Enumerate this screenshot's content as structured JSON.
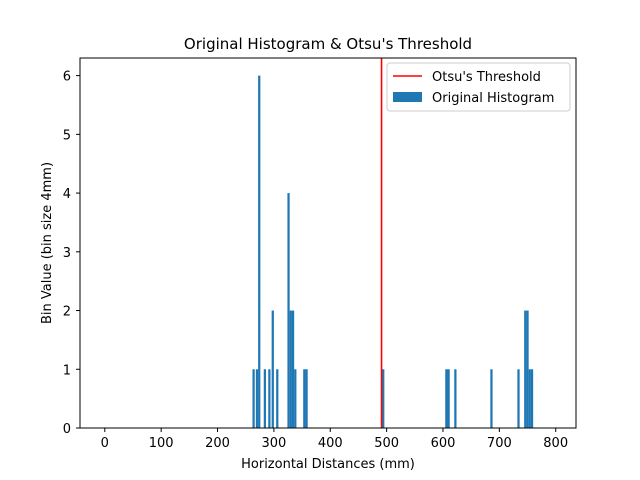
{
  "chart_data": {
    "type": "bar",
    "title": "Original Histogram & Otsu's Threshold",
    "xlabel": "Horizontal Distances (mm)",
    "ylabel": "Bin Value (bin size 4mm)",
    "xlim": [
      -44,
      836
    ],
    "ylim": [
      0,
      6.3
    ],
    "xticks": [
      0,
      100,
      200,
      300,
      400,
      500,
      600,
      700,
      800
    ],
    "yticks": [
      0,
      1,
      2,
      3,
      4,
      5,
      6
    ],
    "bin_size": 4,
    "series": [
      {
        "name": "Original Histogram",
        "color": "#1f77b4",
        "x": [
          264,
          270,
          274,
          284,
          292,
          298,
          306,
          326,
          330,
          334,
          338,
          354,
          358,
          494,
          606,
          610,
          622,
          686,
          734,
          746,
          750,
          754,
          758
        ],
        "values": [
          1,
          1,
          6,
          1,
          1,
          2,
          1,
          4,
          2,
          2,
          1,
          1,
          1,
          1,
          1,
          1,
          1,
          1,
          1,
          2,
          2,
          1,
          1
        ]
      }
    ],
    "threshold": {
      "name": "Otsu's Threshold",
      "value": 491,
      "color": "#ff0000"
    },
    "grid": false,
    "legend_position": "top-right"
  }
}
